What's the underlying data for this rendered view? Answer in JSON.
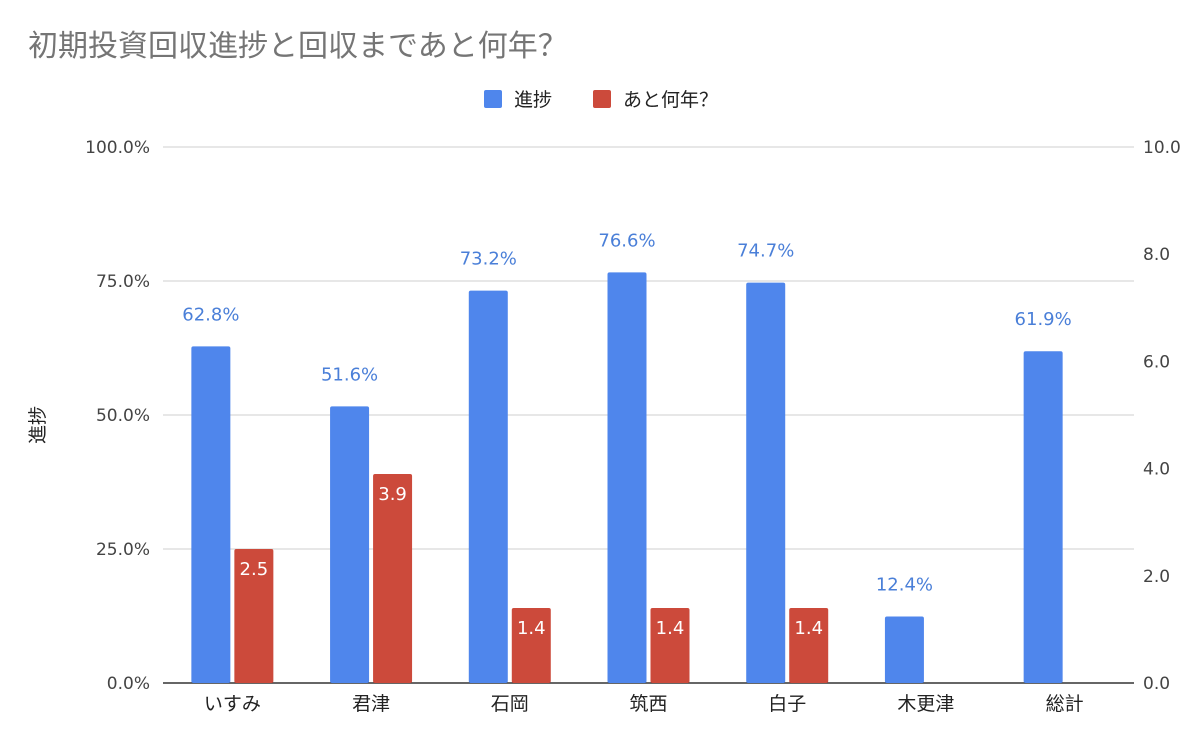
{
  "chart_data": {
    "type": "bar",
    "title": "初期投資回収進捗と回収まであと何年？",
    "categories": [
      "いすみ",
      "君津",
      "石岡",
      "筑西",
      "白子",
      "木更津",
      "総計"
    ],
    "series": [
      {
        "name": "進捗",
        "axis": "left",
        "color": "#4f86ec",
        "values": [
          62.8,
          51.6,
          73.2,
          76.6,
          74.7,
          12.4,
          61.9
        ],
        "data_labels": [
          "62.8%",
          "51.6%",
          "73.2%",
          "76.6%",
          "74.7%",
          "12.4%",
          "61.9%"
        ]
      },
      {
        "name": "あと何年？",
        "axis": "right",
        "color": "#cc4a3b",
        "values": [
          2.5,
          3.9,
          1.4,
          1.4,
          1.4,
          null,
          null
        ],
        "data_labels": [
          "2.5",
          "3.9",
          "1.4",
          "1.4",
          "1.4",
          "",
          ""
        ]
      }
    ],
    "y_left": {
      "label": "進捗",
      "min": 0,
      "max": 100,
      "ticks": [
        0,
        25,
        50,
        75,
        100
      ],
      "tick_labels": [
        "0.0%",
        "25.0%",
        "50.0%",
        "75.0%",
        "100.0%"
      ]
    },
    "y_right": {
      "min": 0,
      "max": 10,
      "ticks": [
        0,
        2,
        4,
        6,
        8,
        10
      ],
      "tick_labels": [
        "0.0",
        "2.0",
        "4.0",
        "6.0",
        "8.0",
        "10.0"
      ]
    },
    "grid": true,
    "legend_position": "top-center"
  }
}
